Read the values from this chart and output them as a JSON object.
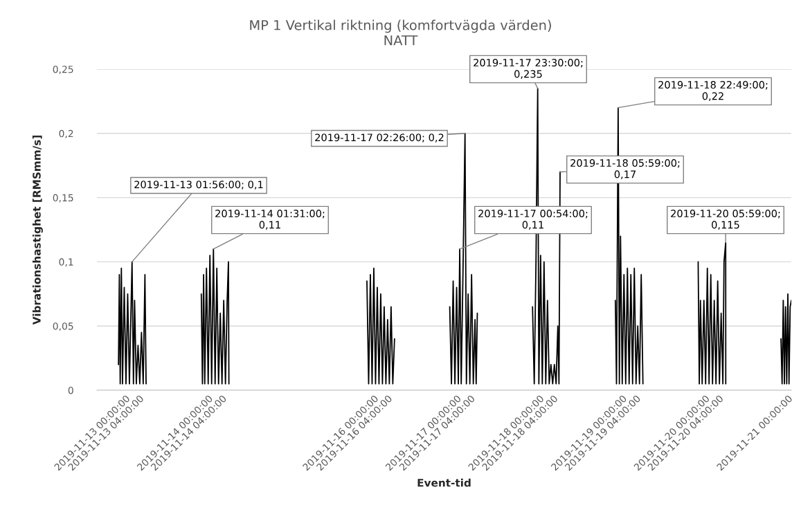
{
  "chart_data": {
    "type": "line",
    "title": "MP 1 Vertikal riktning (komfortvägda värden)",
    "subtitle": "NATT",
    "xlabel": "Event-tid",
    "ylabel": "Vibrationshastighet [RMSmm/s]",
    "x": [
      "2019-11-12T22:00",
      "2019-11-12T22:15",
      "2019-11-12T22:30",
      "2019-11-12T22:50",
      "2019-11-12T23:10",
      "2019-11-12T23:40",
      "2019-11-13T00:10",
      "2019-11-13T00:40",
      "2019-11-13T01:10",
      "2019-11-13T01:56",
      "2019-11-13T02:20",
      "2019-11-13T02:40",
      "2019-11-13T03:10",
      "2019-11-13T03:40",
      "2019-11-13T04:10",
      "2019-11-13T04:40",
      "2019-11-13T05:10",
      "2019-11-13T05:40",
      "2019-11-13T06:00",
      "2019-11-13T12:00",
      "2019-11-13T22:00",
      "2019-11-13T22:20",
      "2019-11-13T22:40",
      "2019-11-13T23:00",
      "2019-11-13T23:30",
      "2019-11-14T00:00",
      "2019-11-14T00:30",
      "2019-11-14T01:00",
      "2019-11-14T01:31",
      "2019-11-14T02:00",
      "2019-11-14T02:30",
      "2019-11-14T03:00",
      "2019-11-14T03:30",
      "2019-11-14T04:00",
      "2019-11-14T04:30",
      "2019-11-14T05:00",
      "2019-11-14T05:30",
      "2019-11-14T05:52",
      "2019-11-14T06:00",
      "2019-11-15T12:00",
      "2019-11-15T22:00",
      "2019-11-15T22:30",
      "2019-11-15T23:00",
      "2019-11-15T23:30",
      "2019-11-16T00:00",
      "2019-11-16T00:30",
      "2019-11-16T01:00",
      "2019-11-16T01:30",
      "2019-11-16T02:00",
      "2019-11-16T02:30",
      "2019-11-16T03:00",
      "2019-11-16T03:30",
      "2019-11-16T04:00",
      "2019-11-16T04:30",
      "2019-11-16T05:00",
      "2019-11-16T05:30",
      "2019-11-16T06:00",
      "2019-11-16T12:00",
      "2019-11-16T22:00",
      "2019-11-16T22:30",
      "2019-11-16T23:00",
      "2019-11-16T23:30",
      "2019-11-17T00:00",
      "2019-11-17T00:30",
      "2019-11-17T00:54",
      "2019-11-17T01:20",
      "2019-11-17T01:50",
      "2019-11-17T02:26",
      "2019-11-17T02:50",
      "2019-11-17T03:20",
      "2019-11-17T03:50",
      "2019-11-17T04:20",
      "2019-11-17T04:50",
      "2019-11-17T05:20",
      "2019-11-17T05:40",
      "2019-11-17T06:00",
      "2019-11-17T12:00",
      "2019-11-17T22:00",
      "2019-11-17T22:30",
      "2019-11-17T23:00",
      "2019-11-17T23:30",
      "2019-11-17T23:50",
      "2019-11-18T00:20",
      "2019-11-18T00:50",
      "2019-11-18T01:20",
      "2019-11-18T01:50",
      "2019-11-18T02:20",
      "2019-11-18T02:50",
      "2019-11-18T03:20",
      "2019-11-18T03:50",
      "2019-11-18T04:20",
      "2019-11-18T04:50",
      "2019-11-18T05:20",
      "2019-11-18T05:40",
      "2019-11-18T05:59",
      "2019-11-18T12:00",
      "2019-11-18T22:00",
      "2019-11-18T22:20",
      "2019-11-18T22:49",
      "2019-11-18T23:10",
      "2019-11-18T23:30",
      "2019-11-19T00:00",
      "2019-11-19T00:30",
      "2019-11-19T01:00",
      "2019-11-19T01:30",
      "2019-11-19T02:00",
      "2019-11-19T02:30",
      "2019-11-19T03:00",
      "2019-11-19T03:30",
      "2019-11-19T04:00",
      "2019-11-19T04:30",
      "2019-11-19T05:00",
      "2019-11-19T05:30",
      "2019-11-19T06:00",
      "2019-11-19T12:00",
      "2019-11-19T22:00",
      "2019-11-19T22:20",
      "2019-11-19T22:40",
      "2019-11-19T23:10",
      "2019-11-19T23:40",
      "2019-11-20T00:10",
      "2019-11-20T00:40",
      "2019-11-20T01:10",
      "2019-11-20T01:40",
      "2019-11-20T02:10",
      "2019-11-20T02:40",
      "2019-11-20T03:10",
      "2019-11-20T03:40",
      "2019-11-20T04:10",
      "2019-11-20T04:40",
      "2019-11-20T05:10",
      "2019-11-20T05:30",
      "2019-11-20T05:59",
      "2019-11-20T06:00",
      "2019-11-20T12:00",
      "2019-11-20T22:00",
      "2019-11-20T22:20",
      "2019-11-20T22:40",
      "2019-11-20T23:00",
      "2019-11-20T23:20",
      "2019-11-20T23:40",
      "2019-11-21T00:00",
      "2019-11-21T00:20",
      "2019-11-21T00:40",
      "2019-11-21T01:00"
    ],
    "series": [
      {
        "color": "#000000",
        "values": [
          0.02,
          0.09,
          0.005,
          0.095,
          0.005,
          0.08,
          0.005,
          0.075,
          0.005,
          0.1,
          0.005,
          0.07,
          0.005,
          0.035,
          0.005,
          0.045,
          0.005,
          0.09,
          0.005,
          null,
          0.075,
          0.005,
          0.09,
          0.005,
          0.095,
          0.005,
          0.105,
          0.005,
          0.11,
          0.005,
          0.095,
          0.005,
          0.06,
          0.005,
          0.07,
          0.005,
          0.07,
          0.1,
          0.005,
          null,
          0.085,
          0.005,
          0.09,
          0.005,
          0.095,
          0.005,
          0.08,
          0.005,
          0.075,
          0.005,
          0.065,
          0.005,
          0.055,
          0.005,
          0.065,
          0.005,
          0.04,
          null,
          0.065,
          0.005,
          0.085,
          0.005,
          0.08,
          0.005,
          0.11,
          0.005,
          0.09,
          0.2,
          0.005,
          0.075,
          0.005,
          0.09,
          0.005,
          0.055,
          0.005,
          0.06,
          null,
          0.065,
          0.005,
          0.1,
          0.235,
          0.005,
          0.105,
          0.005,
          0.1,
          0.005,
          0.07,
          0.005,
          0.02,
          0.005,
          0.02,
          0.005,
          0.05,
          0.005,
          0.17,
          null,
          0.07,
          0.005,
          0.22,
          0.005,
          0.12,
          0.005,
          0.09,
          0.005,
          0.095,
          0.005,
          0.09,
          0.005,
          0.095,
          0.005,
          0.05,
          0.005,
          0.09,
          0.005,
          null,
          0.1,
          0.005,
          0.07,
          0.005,
          0.07,
          0.005,
          0.095,
          0.005,
          0.09,
          0.005,
          0.07,
          0.005,
          0.085,
          0.005,
          0.06,
          0.005,
          0.1,
          0.115,
          0.005,
          null,
          0.04,
          0.005,
          0.07,
          0.005,
          0.065,
          0.005,
          0.075,
          0.005,
          0.065,
          0.07
        ]
      }
    ],
    "xlim": [
      "2019-11-12T15:45",
      "2019-11-21T01:00"
    ],
    "xticks": [
      {
        "value": "2019-11-13T00:00",
        "label": "2019-11-13 00:00:00"
      },
      {
        "value": "2019-11-13T04:00",
        "label": "2019-11-13 04:00:00"
      },
      {
        "value": "2019-11-14T00:00",
        "label": "2019-11-14 00:00:00"
      },
      {
        "value": "2019-11-14T04:00",
        "label": "2019-11-14 04:00:00"
      },
      {
        "value": "2019-11-16T00:00",
        "label": "2019-11-16 00:00:00"
      },
      {
        "value": "2019-11-16T04:00",
        "label": "2019-11-16 04:00:00"
      },
      {
        "value": "2019-11-17T00:00",
        "label": "2019-11-17 00:00:00"
      },
      {
        "value": "2019-11-17T04:00",
        "label": "2019-11-17 04:00:00"
      },
      {
        "value": "2019-11-18T00:00",
        "label": "2019-11-18 00:00:00"
      },
      {
        "value": "2019-11-18T04:00",
        "label": "2019-11-18 04:00:00"
      },
      {
        "value": "2019-11-19T00:00",
        "label": "2019-11-19 00:00:00"
      },
      {
        "value": "2019-11-19T04:00",
        "label": "2019-11-19 04:00:00"
      },
      {
        "value": "2019-11-20T00:00",
        "label": "2019-11-20 00:00:00"
      },
      {
        "value": "2019-11-20T04:00",
        "label": "2019-11-20 04:00:00"
      },
      {
        "value": "2019-11-21T00:00",
        "label": "2019-11-21 00:00:00"
      }
    ],
    "ylim": [
      0,
      0.25
    ],
    "yticks": [
      0,
      {
        "value": 0.05,
        "label": "0,05"
      },
      {
        "value": 0.1,
        "label": "0,1"
      },
      {
        "value": 0.15,
        "label": "0,15"
      },
      {
        "value": 0.2,
        "label": "0,2"
      },
      {
        "value": 0.25,
        "label": "0,25"
      }
    ],
    "grid": "y",
    "annotations": [
      {
        "text": "2019-11-13 01:56:00; 0,1",
        "x": "2019-11-13T01:56",
        "y": 0.1
      },
      {
        "text": "2019-11-14 01:31:00;\n0,11",
        "x": "2019-11-14T01:31",
        "y": 0.11
      },
      {
        "text": "2019-11-17 02:26:00; 0,2",
        "x": "2019-11-17T02:26",
        "y": 0.2
      },
      {
        "text": "2019-11-17 23:30:00;\n0,235",
        "x": "2019-11-17T23:30",
        "y": 0.235
      },
      {
        "text": "2019-11-18 22:49:00;\n0,22",
        "x": "2019-11-18T22:49",
        "y": 0.22
      },
      {
        "text": "2019-11-18 05:59:00;\n0,17",
        "x": "2019-11-18T05:59",
        "y": 0.17
      },
      {
        "text": "2019-11-17 00:54:00;\n0,11",
        "x": "2019-11-17T00:54",
        "y": 0.11
      },
      {
        "text": "2019-11-20 05:59:00;\n0,115",
        "x": "2019-11-20T05:59",
        "y": 0.115
      }
    ]
  }
}
